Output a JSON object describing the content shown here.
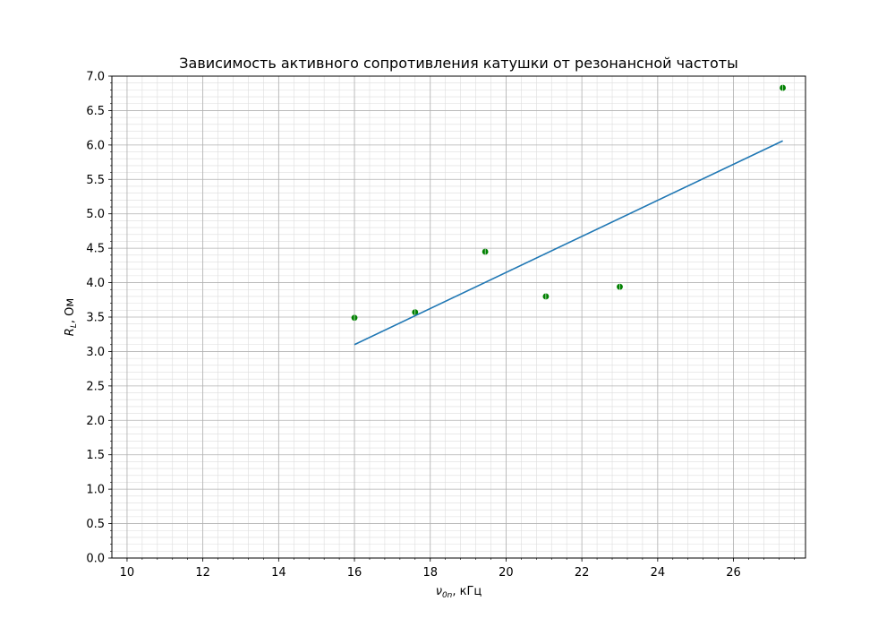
{
  "chart_data": {
    "type": "scatter",
    "title": "Зависимость активного сопротивления катушки от резонансной частоты",
    "xlabel_symbol": "ν",
    "xlabel_sub": "0n",
    "xlabel_rest": ", кГц",
    "ylabel_symbol": "R",
    "ylabel_sub": "L",
    "ylabel_rest": ", Ом",
    "xlim": [
      9.6,
      27.9
    ],
    "ylim": [
      0,
      7
    ],
    "xticks": [
      10,
      12,
      14,
      16,
      18,
      20,
      22,
      24,
      26
    ],
    "yticks": [
      0.0,
      0.5,
      1.0,
      1.5,
      2.0,
      2.5,
      3.0,
      3.5,
      4.0,
      4.5,
      5.0,
      5.5,
      6.0,
      6.5,
      7.0
    ],
    "grid": true,
    "minor_grid": true,
    "series": [
      {
        "kind": "scatter",
        "color": "#008000",
        "points": [
          {
            "x": 16.0,
            "y": 3.49
          },
          {
            "x": 17.6,
            "y": 3.57
          },
          {
            "x": 19.45,
            "y": 4.45
          },
          {
            "x": 21.05,
            "y": 3.8
          },
          {
            "x": 23.0,
            "y": 3.94
          },
          {
            "x": 27.3,
            "y": 6.83
          }
        ]
      },
      {
        "kind": "line",
        "color": "#1f77b4",
        "points": [
          {
            "x": 16.0,
            "y": 3.1
          },
          {
            "x": 27.3,
            "y": 6.06
          }
        ]
      }
    ]
  }
}
